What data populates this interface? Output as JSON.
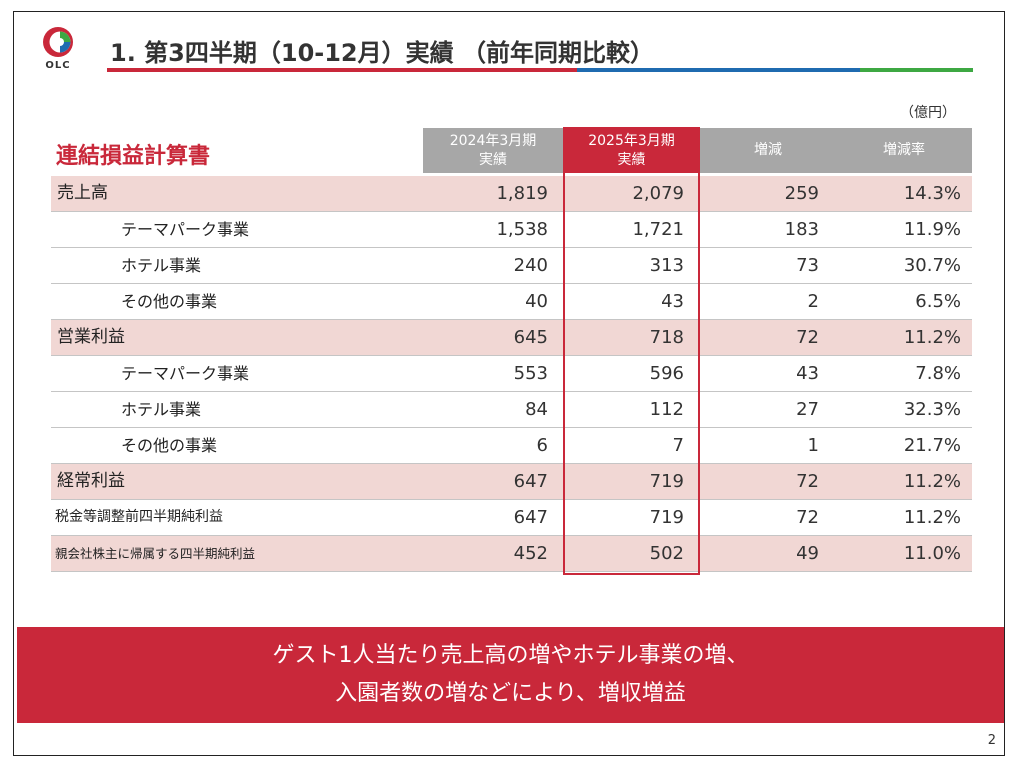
{
  "header": {
    "logo_text": "OLC",
    "title": "1. 第3四半期（10-12月）実績 （前年同期比較）"
  },
  "unit": "（億円）",
  "table": {
    "title": "連結損益計算書",
    "columns": [
      {
        "line1": "2024年3月期",
        "line2": "実績"
      },
      {
        "line1": "2025年3月期",
        "line2": "実績"
      },
      {
        "line1": "増減",
        "line2": ""
      },
      {
        "line1": "増減率",
        "line2": ""
      }
    ],
    "rows": [
      {
        "label": "売上高",
        "prev": "1,819",
        "curr": "2,079",
        "diff": "259",
        "rate": "14.3%"
      },
      {
        "label": "テーマパーク事業",
        "prev": "1,538",
        "curr": "1,721",
        "diff": "183",
        "rate": "11.9%"
      },
      {
        "label": "ホテル事業",
        "prev": "240",
        "curr": "313",
        "diff": "73",
        "rate": "30.7%"
      },
      {
        "label": "その他の事業",
        "prev": "40",
        "curr": "43",
        "diff": "2",
        "rate": "6.5%"
      },
      {
        "label": "営業利益",
        "prev": "645",
        "curr": "718",
        "diff": "72",
        "rate": "11.2%"
      },
      {
        "label": "テーマパーク事業",
        "prev": "553",
        "curr": "596",
        "diff": "43",
        "rate": "7.8%"
      },
      {
        "label": "ホテル事業",
        "prev": "84",
        "curr": "112",
        "diff": "27",
        "rate": "32.3%"
      },
      {
        "label": "その他の事業",
        "prev": "6",
        "curr": "7",
        "diff": "1",
        "rate": "21.7%"
      },
      {
        "label": "経常利益",
        "prev": "647",
        "curr": "719",
        "diff": "72",
        "rate": "11.2%"
      },
      {
        "label": "税金等調整前四半期純利益",
        "prev": "647",
        "curr": "719",
        "diff": "72",
        "rate": "11.2%"
      },
      {
        "label": "親会社株主に帰属する四半期純利益",
        "prev": "452",
        "curr": "502",
        "diff": "49",
        "rate": "11.0%"
      }
    ]
  },
  "banner": {
    "line1": "ゲスト1人当たり売上高の増やホテル事業の増、",
    "line2": "入園者数の増などにより、増収増益"
  },
  "page_number": "2",
  "colors": {
    "accent_red": "#c9283a",
    "blue": "#1f6bb0",
    "green": "#3da843",
    "row_pink": "#f1d7d4",
    "header_gray": "#a7a7a7"
  }
}
